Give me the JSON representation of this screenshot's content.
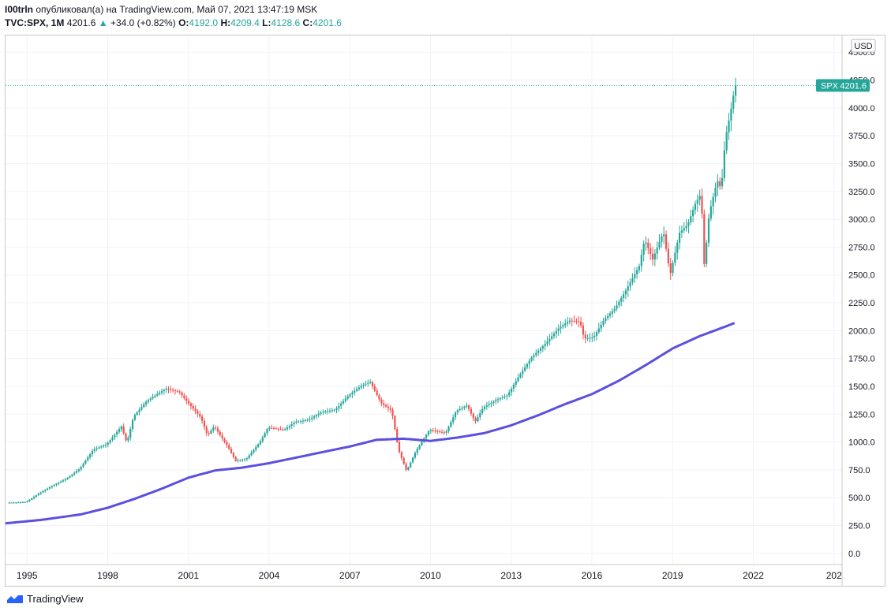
{
  "header": {
    "author": "I00trln",
    "published_text": "опубликовал(а) на TradingView.com, Май 07, 2021 13:47:19 MSK",
    "symbol": "TVC:SPX, 1M",
    "last": "4201.6",
    "arrow": "▲",
    "change": "+34.0 (+0.82%)",
    "o_label": "O:",
    "o_value": "4192.0",
    "h_label": "H:",
    "h_value": "4209.4",
    "l_label": "L:",
    "l_value": "4128.6",
    "c_label": "C:",
    "c_value": "4201.6"
  },
  "footer": {
    "brand": "TradingView"
  },
  "colors": {
    "up": "#26a69a",
    "down": "#ef5350",
    "ma": "#5b4fe0",
    "grid": "#f0f3fa"
  },
  "chart_data": {
    "type": "candlestick",
    "currency": "USD",
    "price_tag": {
      "symbol": "SPX",
      "value": "4201.6"
    },
    "ylim": [
      -100,
      4650
    ],
    "y_ticks": [
      "0.0",
      "250.0",
      "500.0",
      "750.0",
      "1000.0",
      "1250.0",
      "1500.0",
      "1750.0",
      "2000.0",
      "2250.0",
      "2500.0",
      "2750.0",
      "3000.0",
      "3250.0",
      "3500.0",
      "3750.0",
      "4000.0",
      "4250.0",
      "4500.0"
    ],
    "xlim": [
      1994.2,
      2025.3
    ],
    "x_ticks": [
      "1995",
      "1998",
      "2001",
      "2004",
      "2007",
      "2010",
      "2013",
      "2016",
      "2019",
      "2022",
      "202"
    ],
    "price_anchors": [
      [
        1994.3,
        455
      ],
      [
        1995.0,
        460
      ],
      [
        1995.5,
        540
      ],
      [
        1996.0,
        610
      ],
      [
        1996.5,
        670
      ],
      [
        1997.0,
        760
      ],
      [
        1997.5,
        930
      ],
      [
        1998.0,
        980
      ],
      [
        1998.55,
        1140
      ],
      [
        1998.75,
        990
      ],
      [
        1999.0,
        1230
      ],
      [
        1999.5,
        1370
      ],
      [
        2000.2,
        1480
      ],
      [
        2000.7,
        1450
      ],
      [
        2001.0,
        1360
      ],
      [
        2001.5,
        1220
      ],
      [
        2001.75,
        1060
      ],
      [
        2002.0,
        1140
      ],
      [
        2002.5,
        960
      ],
      [
        2002.8,
        830
      ],
      [
        2003.2,
        850
      ],
      [
        2003.7,
        1000
      ],
      [
        2004.0,
        1130
      ],
      [
        2004.6,
        1110
      ],
      [
        2005.0,
        1180
      ],
      [
        2005.5,
        1200
      ],
      [
        2006.0,
        1270
      ],
      [
        2006.5,
        1290
      ],
      [
        2007.0,
        1420
      ],
      [
        2007.5,
        1510
      ],
      [
        2007.8,
        1540
      ],
      [
        2008.2,
        1350
      ],
      [
        2008.6,
        1280
      ],
      [
        2008.85,
        930
      ],
      [
        2009.15,
        740
      ],
      [
        2009.5,
        920
      ],
      [
        2010.0,
        1110
      ],
      [
        2010.4,
        1090
      ],
      [
        2010.6,
        1080
      ],
      [
        2011.0,
        1280
      ],
      [
        2011.4,
        1330
      ],
      [
        2011.7,
        1180
      ],
      [
        2012.0,
        1310
      ],
      [
        2012.5,
        1380
      ],
      [
        2012.9,
        1420
      ],
      [
        2013.3,
        1580
      ],
      [
        2013.8,
        1760
      ],
      [
        2014.3,
        1880
      ],
      [
        2014.8,
        2020
      ],
      [
        2015.2,
        2090
      ],
      [
        2015.6,
        2080
      ],
      [
        2015.75,
        1930
      ],
      [
        2016.1,
        1940
      ],
      [
        2016.5,
        2100
      ],
      [
        2016.9,
        2200
      ],
      [
        2017.3,
        2360
      ],
      [
        2017.8,
        2580
      ],
      [
        2018.0,
        2820
      ],
      [
        2018.3,
        2640
      ],
      [
        2018.7,
        2890
      ],
      [
        2018.95,
        2500
      ],
      [
        2019.3,
        2880
      ],
      [
        2019.6,
        2950
      ],
      [
        2019.9,
        3150
      ],
      [
        2020.1,
        3230
      ],
      [
        2020.22,
        2580
      ],
      [
        2020.4,
        3050
      ],
      [
        2020.7,
        3350
      ],
      [
        2020.85,
        3270
      ],
      [
        2021.0,
        3720
      ],
      [
        2021.2,
        3970
      ],
      [
        2021.35,
        4180
      ],
      [
        2021.37,
        4201.6
      ]
    ],
    "ma_anchors": [
      [
        1994.2,
        270
      ],
      [
        1995.5,
        300
      ],
      [
        1997.0,
        350
      ],
      [
        1998.0,
        410
      ],
      [
        1999.0,
        490
      ],
      [
        2000.0,
        580
      ],
      [
        2001.0,
        680
      ],
      [
        2002.0,
        745
      ],
      [
        2003.0,
        770
      ],
      [
        2004.0,
        810
      ],
      [
        2005.0,
        860
      ],
      [
        2006.0,
        910
      ],
      [
        2007.0,
        960
      ],
      [
        2008.0,
        1020
      ],
      [
        2009.0,
        1030
      ],
      [
        2010.0,
        1010
      ],
      [
        2011.0,
        1040
      ],
      [
        2012.0,
        1080
      ],
      [
        2013.0,
        1150
      ],
      [
        2014.0,
        1240
      ],
      [
        2015.0,
        1340
      ],
      [
        2016.0,
        1430
      ],
      [
        2017.0,
        1550
      ],
      [
        2018.0,
        1690
      ],
      [
        2019.0,
        1840
      ],
      [
        2020.0,
        1950
      ],
      [
        2021.0,
        2040
      ],
      [
        2021.37,
        2075
      ]
    ]
  }
}
